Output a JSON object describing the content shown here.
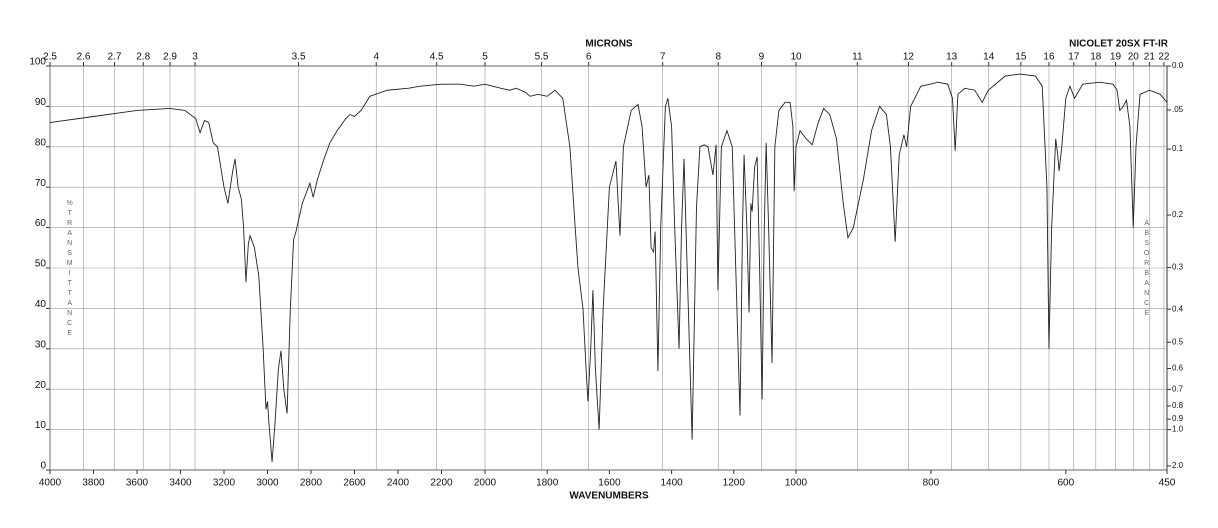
{
  "chart_data": {
    "type": "line",
    "top_axis_label": "MICRONS",
    "instrument": "NICOLET 20SX FT-IR",
    "xlabel": "WAVENUMBERS",
    "ylabel": "%TRANSMITTANCE",
    "y2label": "ABSORBANCE",
    "color": "#222222",
    "grid": true,
    "xlim": [
      4000,
      450
    ],
    "x_scale_breaks": [
      2000,
      1000
    ],
    "xticks": [
      4000,
      3800,
      3600,
      3400,
      3200,
      3000,
      2800,
      2600,
      2400,
      2200,
      2000,
      1800,
      1600,
      1400,
      1200,
      1000,
      800,
      600,
      450
    ],
    "x2ticks": [
      2.5,
      2.6,
      2.7,
      2.8,
      2.9,
      3,
      3.5,
      4,
      4.5,
      5,
      5.5,
      6,
      7,
      8,
      9,
      10,
      11,
      12,
      13,
      14,
      15,
      16,
      17,
      18,
      19,
      20,
      21,
      22
    ],
    "ylim": [
      0,
      100
    ],
    "yticks": [
      0,
      10,
      20,
      30,
      40,
      50,
      60,
      70,
      80,
      90,
      100
    ],
    "y2ticks": [
      {
        "value": 0,
        "label": "0.0"
      },
      {
        "value": 0.05,
        "label": ".05"
      },
      0.1,
      0.2,
      0.3,
      0.4,
      0.5,
      0.6,
      0.7,
      0.8,
      0.9,
      {
        "value": 1,
        "label": "1.0"
      },
      {
        "value": 2,
        "label": "2.0"
      }
    ],
    "x": [
      4000,
      3800,
      3600,
      3450,
      3380,
      3330,
      3310,
      3290,
      3270,
      3250,
      3230,
      3200,
      3182,
      3160,
      3149,
      3135,
      3120,
      3110,
      3099,
      3088,
      3080,
      3060,
      3040,
      3020,
      3007,
      3000,
      2994,
      2979,
      2965,
      2950,
      2938,
      2925,
      2910,
      2895,
      2880,
      2869,
      2840,
      2805,
      2790,
      2770,
      2740,
      2713,
      2680,
      2640,
      2621,
      2600,
      2570,
      2529,
      2450,
      2350,
      2299,
      2200,
      2115,
      2050,
      2000,
      1950,
      1920,
      1900,
      1870,
      1855,
      1830,
      1800,
      1775,
      1750,
      1727,
      1710,
      1701,
      1685,
      1675,
      1669,
      1660,
      1653,
      1645,
      1633,
      1620,
      1600,
      1579,
      1566,
      1555,
      1530,
      1508,
      1495,
      1482,
      1473,
      1466,
      1458,
      1453,
      1444,
      1435,
      1420,
      1412,
      1400,
      1390,
      1376,
      1368,
      1360,
      1350,
      1334,
      1320,
      1309,
      1295,
      1283,
      1267,
      1257,
      1251,
      1240,
      1222,
      1205,
      1190,
      1180,
      1172,
      1167,
      1158,
      1151,
      1145,
      1141,
      1133,
      1125,
      1117,
      1109,
      1102,
      1096,
      1088,
      1077,
      1068,
      1055,
      1035,
      1019,
      1010,
      1006,
      1000,
      994,
      985,
      976,
      967,
      959,
      950,
      940,
      930,
      923,
      915,
      900,
      888,
      876,
      866,
      860,
      853,
      847,
      840,
      836,
      830,
      815,
      801,
      790,
      775,
      768,
      764,
      760,
      750,
      735,
      724,
      715,
      690,
      668,
      645,
      635,
      628,
      625,
      621,
      615,
      612,
      610,
      606,
      600,
      594,
      587,
      575,
      550,
      530,
      524,
      520,
      515,
      510,
      505,
      500,
      496,
      490,
      476,
      460,
      450
    ],
    "values": [
      86,
      87.5,
      89,
      89.5,
      89,
      87,
      83.5,
      86.5,
      86,
      81,
      80,
      70,
      66,
      74,
      77,
      70,
      67,
      60,
      46.5,
      56,
      58,
      55,
      48,
      30,
      15,
      17,
      12,
      2,
      12,
      25,
      29.5,
      20,
      14,
      40,
      57,
      59,
      66,
      71,
      67.5,
      72,
      77,
      81,
      84,
      87,
      88,
      87.5,
      89,
      92.5,
      94,
      94.5,
      95,
      95.5,
      95.5,
      95,
      95.5,
      94.5,
      94,
      94.5,
      93.5,
      92.5,
      93,
      92.5,
      94,
      92,
      80,
      60,
      50,
      40,
      25,
      17,
      30,
      44.5,
      25,
      10,
      40,
      70,
      76.5,
      58,
      80,
      89,
      90.5,
      85,
      70,
      73,
      55,
      54,
      59,
      24.5,
      60,
      90,
      92,
      85,
      60,
      30,
      60,
      77,
      50,
      7.5,
      65,
      80,
      80.5,
      80,
      73,
      80.5,
      44.5,
      80,
      84,
      80,
      40,
      13.5,
      60,
      78,
      60,
      39,
      66,
      64,
      75,
      77.5,
      50,
      17.5,
      60,
      81,
      60,
      26.5,
      80,
      89,
      91,
      91,
      85,
      69,
      80,
      84,
      82,
      80.5,
      86,
      89.5,
      88,
      82,
      66,
      57.5,
      60,
      72,
      84,
      90,
      88,
      80,
      56.5,
      78,
      83,
      80,
      90,
      95,
      95.5,
      96,
      95.5,
      92,
      79,
      93,
      94.5,
      94,
      91,
      94,
      97.5,
      98,
      97.5,
      95,
      70,
      30,
      60,
      82,
      78,
      74,
      80,
      92,
      95,
      92,
      95.5,
      96,
      95.5,
      94,
      89,
      90,
      91.5,
      85,
      60,
      80,
      93,
      94,
      93,
      91
    ]
  }
}
